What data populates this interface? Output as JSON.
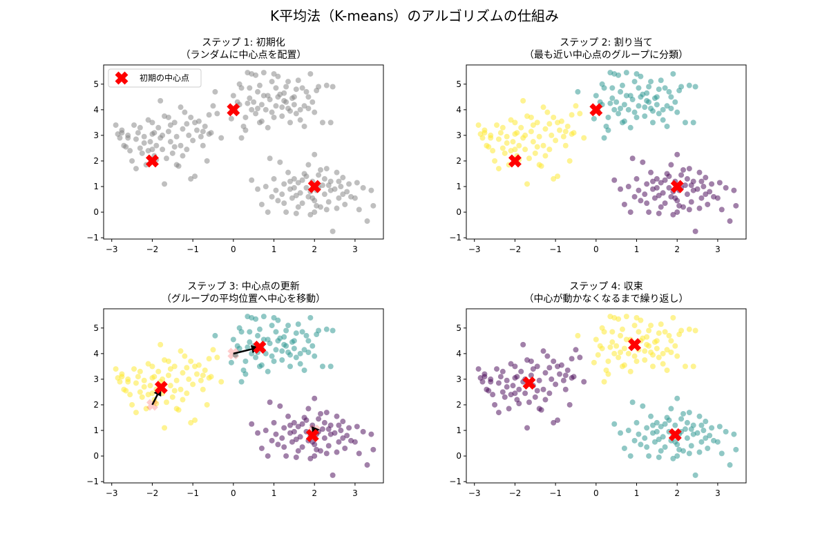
{
  "figure": {
    "title": "K平均法（K-means）のアルゴリズムの仕組み"
  },
  "colors": {
    "gray": "#808080",
    "purple": "#440154",
    "teal": "#21918c",
    "yellow": "#fde725",
    "center": "#ff0000",
    "arrow": "#000000"
  },
  "chart_data": [
    {
      "type": "scatter",
      "title_line1": "ステップ 1: 初期化",
      "title_line2": "（ランダムに中心点を配置）",
      "xlim": [
        -3.2,
        3.7
      ],
      "ylim": [
        -1.05,
        5.75
      ],
      "xticks": [
        -3,
        -2,
        -1,
        0,
        1,
        2,
        3
      ],
      "yticks": [
        -1,
        0,
        1,
        2,
        3,
        4,
        5
      ],
      "legend": {
        "position": "top-left",
        "label": "初期の中心点"
      },
      "point_color": [
        "gray",
        "gray",
        "gray"
      ],
      "centers": [
        [
          -2.0,
          2.0
        ],
        [
          0.0,
          4.0
        ],
        [
          2.0,
          1.0
        ]
      ],
      "center_colors": [
        "center",
        "center",
        "center"
      ],
      "old_centers": [],
      "arrows": []
    },
    {
      "type": "scatter",
      "title_line1": "ステップ 2: 割り当て",
      "title_line2": "（最も近い中心点のグループに分類）",
      "xlim": [
        -3.2,
        3.7
      ],
      "ylim": [
        -1.05,
        5.75
      ],
      "xticks": [
        -3,
        -2,
        -1,
        0,
        1,
        2,
        3
      ],
      "yticks": [
        -1,
        0,
        1,
        2,
        3,
        4,
        5
      ],
      "point_color": [
        "yellow",
        "teal",
        "purple"
      ],
      "centers": [
        [
          -2.0,
          2.0
        ],
        [
          0.0,
          4.0
        ],
        [
          2.0,
          1.0
        ]
      ],
      "old_centers": [],
      "arrows": []
    },
    {
      "type": "scatter",
      "title_line1": "ステップ 3: 中心点の更新",
      "title_line2": "（グループの平均位置へ中心を移動）",
      "xlim": [
        -3.2,
        3.7
      ],
      "ylim": [
        -1.05,
        5.75
      ],
      "xticks": [
        -3,
        -2,
        -1,
        0,
        1,
        2,
        3
      ],
      "yticks": [
        -1,
        0,
        1,
        2,
        3,
        4,
        5
      ],
      "point_color": [
        "yellow",
        "teal",
        "purple"
      ],
      "centers": [
        [
          -1.78,
          2.68
        ],
        [
          0.65,
          4.25
        ],
        [
          1.95,
          0.8
        ]
      ],
      "old_centers": [
        [
          -2.0,
          2.0
        ],
        [
          0.0,
          4.0
        ],
        [
          2.0,
          1.0
        ]
      ],
      "arrows": [
        {
          "from": [
            -2.0,
            2.0
          ],
          "to": [
            -1.78,
            2.68
          ]
        },
        {
          "from": [
            0.0,
            4.0
          ],
          "to": [
            0.65,
            4.25
          ]
        },
        {
          "from": [
            2.0,
            1.0
          ],
          "to": [
            1.95,
            0.8
          ]
        }
      ]
    },
    {
      "type": "scatter",
      "title_line1": "ステップ 4: 収束",
      "title_line2": "（中心が動かなくなるまで繰り返し）",
      "xlim": [
        -3.2,
        3.7
      ],
      "ylim": [
        -1.05,
        5.75
      ],
      "xticks": [
        -3,
        -2,
        -1,
        0,
        1,
        2,
        3
      ],
      "yticks": [
        -1,
        0,
        1,
        2,
        3,
        4,
        5
      ],
      "point_color": [
        "purple",
        "yellow",
        "teal"
      ],
      "centers": [
        [
          -1.65,
          2.85
        ],
        [
          0.95,
          4.35
        ],
        [
          1.95,
          0.83
        ]
      ],
      "old_centers": [],
      "arrows": []
    }
  ],
  "clusters": [
    {
      "name": "left",
      "points": [
        [
          -2.9,
          3.4
        ],
        [
          -2.85,
          3.05
        ],
        [
          -2.8,
          2.9
        ],
        [
          -2.75,
          3.2
        ],
        [
          -2.7,
          2.6
        ],
        [
          -2.65,
          2.55
        ],
        [
          -2.6,
          3.0
        ],
        [
          -2.55,
          2.4
        ],
        [
          -2.5,
          2.0
        ],
        [
          -2.45,
          3.4
        ],
        [
          -2.4,
          2.85
        ],
        [
          -2.35,
          3.1
        ],
        [
          -2.3,
          2.5
        ],
        [
          -2.25,
          2.3
        ],
        [
          -2.2,
          2.95
        ],
        [
          -2.15,
          1.85
        ],
        [
          -2.1,
          3.6
        ],
        [
          -2.05,
          2.75
        ],
        [
          -2.0,
          3.05
        ],
        [
          -1.95,
          2.2
        ],
        [
          -1.9,
          2.6
        ],
        [
          -1.85,
          3.3
        ],
        [
          -1.8,
          4.35
        ],
        [
          -1.8,
          2.9
        ],
        [
          -1.75,
          2.45
        ],
        [
          -1.7,
          1.1
        ],
        [
          -1.7,
          3.75
        ],
        [
          -1.65,
          2.1
        ],
        [
          -1.6,
          3.15
        ],
        [
          -1.55,
          2.75
        ],
        [
          -1.5,
          2.3
        ],
        [
          -1.45,
          3.5
        ],
        [
          -1.4,
          2.95
        ],
        [
          -1.35,
          1.8
        ],
        [
          -1.3,
          2.6
        ],
        [
          -1.25,
          3.25
        ],
        [
          -1.2,
          3.9
        ],
        [
          -1.15,
          2.45
        ],
        [
          -1.1,
          3.0
        ],
        [
          -1.05,
          1.3
        ],
        [
          -1.0,
          2.8
        ],
        [
          -0.95,
          3.5
        ],
        [
          -0.9,
          3.2
        ],
        [
          -0.85,
          3.55
        ],
        [
          -0.8,
          2.95
        ],
        [
          -0.75,
          2.6
        ],
        [
          -0.7,
          3.35
        ],
        [
          -0.65,
          2.0
        ],
        [
          -0.6,
          3.05
        ],
        [
          -0.55,
          3.1
        ],
        [
          -0.5,
          4.15
        ],
        [
          -0.4,
          3.85
        ],
        [
          -1.3,
          4.1
        ],
        [
          -1.6,
          3.7
        ],
        [
          -2.3,
          3.3
        ],
        [
          -2.0,
          3.5
        ],
        [
          -2.2,
          2.7
        ],
        [
          -1.95,
          3.1
        ],
        [
          -1.45,
          2.55
        ],
        [
          -0.3,
          2.9
        ],
        [
          -0.95,
          1.4
        ],
        [
          -1.25,
          2.2
        ],
        [
          -2.6,
          2.9
        ],
        [
          -1.75,
          3.0
        ],
        [
          -2.4,
          1.7
        ],
        [
          -2.1,
          2.4
        ],
        [
          -1.55,
          3.4
        ],
        [
          -1.05,
          3.7
        ],
        [
          -0.75,
          3.15
        ],
        [
          -2.75,
          3.1
        ],
        [
          -1.9,
          2.05
        ],
        [
          -1.4,
          1.85
        ],
        [
          -1.15,
          3.45
        ],
        [
          -0.6,
          3.8
        ],
        [
          -2.0,
          2.45
        ]
      ]
    },
    {
      "name": "top",
      "points": [
        [
          -0.45,
          4.7
        ],
        [
          -0.05,
          3.65
        ],
        [
          0.0,
          4.55
        ],
        [
          0.05,
          3.95
        ],
        [
          0.1,
          4.3
        ],
        [
          0.15,
          5.0
        ],
        [
          0.2,
          4.85
        ],
        [
          0.25,
          3.35
        ],
        [
          0.3,
          3.7
        ],
        [
          0.35,
          4.25
        ],
        [
          0.4,
          4.45
        ],
        [
          0.45,
          5.4
        ],
        [
          0.5,
          4.3
        ],
        [
          0.55,
          3.85
        ],
        [
          0.6,
          4.7
        ],
        [
          0.65,
          4.95
        ],
        [
          0.7,
          3.55
        ],
        [
          0.75,
          5.45
        ],
        [
          0.8,
          4.0
        ],
        [
          0.85,
          4.55
        ],
        [
          0.9,
          4.4
        ],
        [
          0.95,
          5.1
        ],
        [
          1.0,
          3.7
        ],
        [
          1.05,
          4.15
        ],
        [
          1.1,
          5.3
        ],
        [
          1.15,
          4.6
        ],
        [
          1.2,
          3.75
        ],
        [
          1.25,
          4.35
        ],
        [
          1.3,
          4.9
        ],
        [
          1.35,
          4.05
        ],
        [
          1.4,
          3.5
        ],
        [
          1.45,
          4.45
        ],
        [
          1.5,
          4.2
        ],
        [
          1.55,
          3.85
        ],
        [
          1.6,
          5.15
        ],
        [
          1.65,
          4.0
        ],
        [
          1.7,
          4.85
        ],
        [
          1.75,
          3.35
        ],
        [
          1.8,
          4.7
        ],
        [
          1.85,
          4.5
        ],
        [
          1.9,
          5.4
        ],
        [
          1.95,
          4.3
        ],
        [
          2.05,
          4.75
        ],
        [
          2.1,
          4.9
        ],
        [
          2.2,
          3.5
        ],
        [
          2.3,
          4.95
        ],
        [
          2.4,
          3.5
        ],
        [
          2.45,
          4.9
        ],
        [
          0.2,
          2.9
        ],
        [
          0.35,
          5.45
        ],
        [
          0.55,
          5.35
        ],
        [
          1.0,
          5.4
        ],
        [
          1.35,
          5.1
        ],
        [
          0.85,
          3.3
        ],
        [
          1.2,
          4.1
        ],
        [
          0.45,
          4.0
        ],
        [
          0.7,
          4.2
        ],
        [
          1.5,
          4.5
        ],
        [
          0.3,
          3.2
        ],
        [
          1.65,
          3.6
        ],
        [
          1.25,
          4.65
        ],
        [
          0.95,
          3.9
        ],
        [
          0.6,
          4.05
        ],
        [
          1.1,
          4.5
        ],
        [
          0.4,
          4.85
        ],
        [
          1.55,
          4.8
        ],
        [
          2.0,
          3.9
        ],
        [
          0.15,
          4.2
        ],
        [
          1.75,
          4.15
        ],
        [
          0.75,
          4.55
        ],
        [
          1.4,
          3.95
        ],
        [
          0.65,
          3.5
        ],
        [
          1.05,
          4.85
        ],
        [
          1.85,
          4.05
        ],
        [
          1.3,
          4.3
        ]
      ]
    },
    {
      "name": "bottom-right",
      "points": [
        [
          0.45,
          1.25
        ],
        [
          0.6,
          0.9
        ],
        [
          0.7,
          0.3
        ],
        [
          0.8,
          1.0
        ],
        [
          0.85,
          0.0
        ],
        [
          0.9,
          2.1
        ],
        [
          0.95,
          0.6
        ],
        [
          1.0,
          1.3
        ],
        [
          1.05,
          0.85
        ],
        [
          1.1,
          0.45
        ],
        [
          1.15,
          1.95
        ],
        [
          1.2,
          0.7
        ],
        [
          1.25,
          1.1
        ],
        [
          1.3,
          0.0
        ],
        [
          1.35,
          1.55
        ],
        [
          1.4,
          0.9
        ],
        [
          1.45,
          0.55
        ],
        [
          1.5,
          1.3
        ],
        [
          1.55,
          -0.05
        ],
        [
          1.6,
          1.15
        ],
        [
          1.65,
          0.75
        ],
        [
          1.7,
          0.35
        ],
        [
          1.75,
          1.5
        ],
        [
          1.8,
          0.95
        ],
        [
          1.85,
          0.6
        ],
        [
          1.9,
          -0.1
        ],
        [
          1.95,
          1.2
        ],
        [
          2.0,
          2.25
        ],
        [
          2.0,
          0.45
        ],
        [
          2.05,
          0.85
        ],
        [
          2.1,
          1.45
        ],
        [
          2.15,
          0.2
        ],
        [
          2.2,
          1.05
        ],
        [
          2.25,
          0.7
        ],
        [
          2.3,
          1.7
        ],
        [
          2.35,
          0.4
        ],
        [
          2.4,
          1.2
        ],
        [
          2.45,
          -0.75
        ],
        [
          2.5,
          0.9
        ],
        [
          2.55,
          1.55
        ],
        [
          2.6,
          0.55
        ],
        [
          2.65,
          1.0
        ],
        [
          2.7,
          1.35
        ],
        [
          2.75,
          0.3
        ],
        [
          2.8,
          0.8
        ],
        [
          2.85,
          1.1
        ],
        [
          2.9,
          0.6
        ],
        [
          3.0,
          0.55
        ],
        [
          3.05,
          1.15
        ],
        [
          3.1,
          0.1
        ],
        [
          3.2,
          0.95
        ],
        [
          3.3,
          -0.35
        ],
        [
          3.4,
          0.85
        ],
        [
          3.45,
          0.25
        ],
        [
          1.85,
          1.85
        ],
        [
          1.5,
          0.95
        ],
        [
          1.7,
          1.25
        ],
        [
          2.0,
          0.0
        ],
        [
          2.3,
          0.1
        ],
        [
          1.25,
          0.35
        ],
        [
          2.4,
          0.85
        ],
        [
          1.95,
          0.55
        ],
        [
          2.15,
          1.65
        ],
        [
          1.6,
          0.2
        ],
        [
          2.6,
          1.2
        ],
        [
          1.8,
          1.4
        ],
        [
          2.1,
          0.95
        ],
        [
          2.55,
          0.15
        ],
        [
          1.4,
          1.2
        ],
        [
          2.25,
          1.3
        ],
        [
          1.9,
          0.8
        ],
        [
          2.7,
          0.7
        ],
        [
          1.55,
          0.65
        ],
        [
          2.05,
          0.25
        ],
        [
          2.35,
          1.05
        ]
      ]
    }
  ]
}
